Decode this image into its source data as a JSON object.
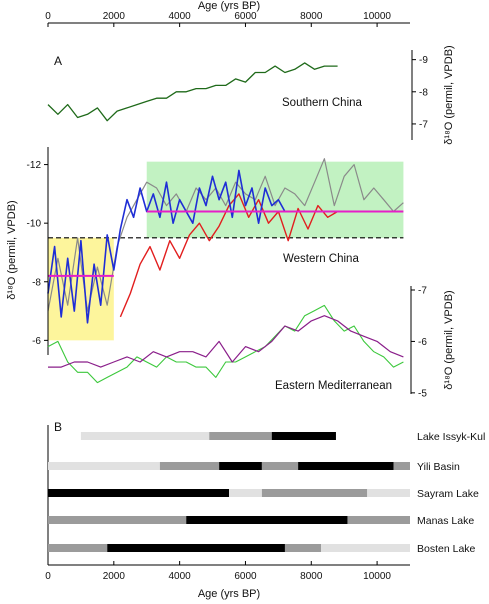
{
  "chart_data": [
    {
      "panel": "A",
      "type": "line",
      "x_axis": {
        "title": "Age (yrs BP)",
        "range": [
          0,
          11000
        ],
        "ticks": [
          0,
          2000,
          4000,
          6000,
          8000,
          10000
        ],
        "position": "top"
      },
      "charts": [
        {
          "label": "Southern China",
          "ylabel": "δ¹⁸O (permil, VPDB)",
          "y_axis": "right",
          "ylim": [
            -6.5,
            -9.3
          ],
          "y_ticks": [
            -7,
            -8,
            -9
          ],
          "series": [
            {
              "color": "#1f6a1a",
              "x": [
                0,
                300,
                600,
                900,
                1200,
                1500,
                1800,
                2100,
                2400,
                2700,
                3000,
                3300,
                3600,
                3900,
                4200,
                4500,
                4800,
                5100,
                5400,
                5700,
                6000,
                6300,
                6600,
                6900,
                7200,
                7500,
                7800,
                8100,
                8400,
                8800
              ],
              "values": [
                -7.6,
                -7.3,
                -7.6,
                -7.2,
                -7.3,
                -7.5,
                -7.1,
                -7.4,
                -7.5,
                -7.6,
                -7.7,
                -7.8,
                -7.8,
                -8.0,
                -8.0,
                -8.1,
                -8.1,
                -8.2,
                -8.2,
                -8.4,
                -8.3,
                -8.6,
                -8.6,
                -8.8,
                -8.6,
                -8.7,
                -8.9,
                -8.7,
                -8.8,
                -8.8
              ]
            }
          ]
        },
        {
          "label": "Western China",
          "ylabel": "δ¹⁸O (permil, VPDB)",
          "y_axis": "left",
          "ylim": [
            -5.5,
            -12.6
          ],
          "y_ticks": [
            -6,
            -8,
            -10,
            -12
          ],
          "grid": false,
          "highlights": [
            {
              "x": [
                0,
                2000
              ],
              "y": [
                -6,
                -9.5
              ],
              "color": "#fdf59c"
            },
            {
              "x": [
                3000,
                10800
              ],
              "y": [
                -9.5,
                -12.1
              ],
              "color": "#c2f2c2"
            }
          ],
          "dashed_line": {
            "x": [
              0,
              10800
            ],
            "y": -9.5,
            "color": "#000000"
          },
          "mean_lines": [
            {
              "x": [
                0,
                2000
              ],
              "y": -8.2,
              "color": "#e61ec8"
            },
            {
              "x": [
                3000,
                10800
              ],
              "y": -10.4,
              "color": "#e61ec8"
            }
          ],
          "series": [
            {
              "color": "#8a8a8a",
              "x": [
                0,
                300,
                600,
                900,
                1200,
                1500,
                1800,
                2100,
                2400,
                2700,
                3000,
                3300,
                3600,
                3900,
                4200,
                4500,
                4800,
                5100,
                5400,
                5700,
                6000,
                6300,
                6600,
                6900,
                7200,
                7500,
                7800,
                8100,
                8400,
                8700,
                9000,
                9300,
                9600,
                9900,
                10200,
                10500,
                10800
              ],
              "values": [
                -7.0,
                -8.8,
                -7.2,
                -9.5,
                -7.0,
                -8.5,
                -7.2,
                -9.2,
                -10.2,
                -10.8,
                -11.4,
                -11.2,
                -10.6,
                -11.0,
                -10.4,
                -11.2,
                -10.8,
                -11.2,
                -10.6,
                -11.4,
                -11.0,
                -10.8,
                -11.6,
                -10.6,
                -11.2,
                -11.0,
                -10.6,
                -11.4,
                -12.2,
                -10.6,
                -11.6,
                -12.0,
                -10.8,
                -11.2,
                -10.8,
                -10.4,
                -10.7
              ]
            },
            {
              "color": "#e21e1e",
              "x": [
                2200,
                2500,
                2800,
                3100,
                3400,
                3700,
                4000,
                4300,
                4600,
                4900,
                5200,
                5500,
                5800,
                6100,
                6400,
                6700,
                7000,
                7300,
                7600,
                7900,
                8200,
                8500,
                8800
              ],
              "values": [
                -6.8,
                -7.6,
                -8.6,
                -9.2,
                -8.4,
                -9.4,
                -8.8,
                -9.6,
                -10.0,
                -9.4,
                -9.9,
                -10.6,
                -11.0,
                -10.2,
                -10.8,
                -10.0,
                -10.4,
                -9.4,
                -10.5,
                -9.8,
                -10.6,
                -10.2,
                -10.4
              ]
            },
            {
              "color": "#1f2ed6",
              "x": [
                0,
                200,
                400,
                600,
                800,
                1000,
                1200,
                1400,
                1600,
                1800,
                2000,
                2200,
                2400,
                2600,
                2800,
                3000,
                3200,
                3400,
                3600,
                3800,
                4000,
                4200,
                4400,
                4600,
                4800,
                5000,
                5200,
                5400,
                5600,
                5800,
                6000,
                6200,
                6400,
                6600,
                6800,
                7000,
                7200
              ],
              "values": [
                -7.6,
                -9.2,
                -6.8,
                -8.8,
                -7.0,
                -9.4,
                -6.6,
                -8.6,
                -7.2,
                -9.6,
                -8.4,
                -9.8,
                -10.8,
                -10.2,
                -11.2,
                -10.4,
                -11.0,
                -10.2,
                -11.4,
                -10.0,
                -10.8,
                -10.4,
                -10.0,
                -11.2,
                -10.6,
                -11.6,
                -10.8,
                -11.4,
                -10.2,
                -11.8,
                -10.6,
                -11.2,
                -10.0,
                -11.2,
                -10.6,
                -10.8,
                -10.4
              ]
            }
          ]
        },
        {
          "label": "Eastern Mediterranean",
          "ylabel": "δ¹⁸O (permil, VPDB)",
          "y_axis": "right",
          "ylim": [
            -4.9,
            -7.0
          ],
          "y_ticks": [
            -5,
            -6,
            -7
          ],
          "series": [
            {
              "color": "#3cc83c",
              "x": [
                0,
                300,
                600,
                900,
                1200,
                1500,
                1800,
                2100,
                2400,
                2700,
                3000,
                3300,
                3600,
                3900,
                4200,
                4500,
                4800,
                5100,
                5400,
                5700,
                6000,
                6300,
                6600,
                6900,
                7200,
                7500,
                7800,
                8100,
                8400,
                8700,
                9000,
                9300,
                9600,
                9900,
                10200,
                10500,
                10800
              ],
              "values": [
                -5.9,
                -6.0,
                -5.6,
                -5.4,
                -5.4,
                -5.2,
                -5.3,
                -5.4,
                -5.5,
                -5.7,
                -5.6,
                -5.5,
                -5.7,
                -5.6,
                -5.6,
                -5.5,
                -5.5,
                -5.3,
                -5.6,
                -5.6,
                -5.7,
                -5.8,
                -5.9,
                -6.1,
                -6.3,
                -6.2,
                -6.5,
                -6.6,
                -6.7,
                -6.4,
                -6.2,
                -6.3,
                -6.0,
                -5.8,
                -5.7,
                -5.5,
                -5.6
              ]
            },
            {
              "color": "#8a1e8a",
              "x": [
                0,
                400,
                800,
                1200,
                1600,
                2000,
                2400,
                2800,
                3200,
                3600,
                4000,
                4400,
                4800,
                5200,
                5600,
                6000,
                6400,
                6800,
                7200,
                7600,
                8000,
                8400,
                8800,
                9200,
                9600,
                10000,
                10400,
                10800
              ],
              "values": [
                -5.5,
                -5.5,
                -5.6,
                -5.6,
                -5.5,
                -5.6,
                -5.7,
                -5.6,
                -5.8,
                -5.7,
                -5.8,
                -5.8,
                -5.7,
                -6.0,
                -5.6,
                -5.9,
                -5.8,
                -6.0,
                -6.3,
                -6.2,
                -6.4,
                -6.5,
                -6.4,
                -6.2,
                -6.1,
                -6.0,
                -5.8,
                -5.7
              ]
            }
          ]
        }
      ]
    },
    {
      "panel": "B",
      "type": "bar",
      "x_axis": {
        "title": "Age (yrs BP)",
        "range": [
          0,
          11000
        ],
        "ticks": [
          0,
          2000,
          4000,
          6000,
          8000,
          10000
        ],
        "position": "bottom"
      },
      "legend": "none",
      "categories": [
        "Lake Issyk-Kul",
        "Yili Basin",
        "Sayram Lake",
        "Manas Lake",
        "Bosten Lake"
      ],
      "intervals": [
        [
          {
            "start": 1000,
            "end": 4900,
            "shade": "light"
          },
          {
            "start": 4900,
            "end": 6800,
            "shade": "medium"
          },
          {
            "start": 6800,
            "end": 8750,
            "shade": "dark"
          }
        ],
        [
          {
            "start": 0,
            "end": 3400,
            "shade": "light"
          },
          {
            "start": 3400,
            "end": 5200,
            "shade": "medium"
          },
          {
            "start": 5200,
            "end": 6500,
            "shade": "dark"
          },
          {
            "start": 6500,
            "end": 7600,
            "shade": "medium"
          },
          {
            "start": 7600,
            "end": 10500,
            "shade": "dark"
          },
          {
            "start": 10500,
            "end": 11000,
            "shade": "medium"
          }
        ],
        [
          {
            "start": 0,
            "end": 5500,
            "shade": "dark"
          },
          {
            "start": 5500,
            "end": 6500,
            "shade": "light"
          },
          {
            "start": 6500,
            "end": 9700,
            "shade": "medium"
          },
          {
            "start": 9700,
            "end": 11000,
            "shade": "light"
          }
        ],
        [
          {
            "start": 0,
            "end": 4200,
            "shade": "medium"
          },
          {
            "start": 4200,
            "end": 9100,
            "shade": "dark"
          },
          {
            "start": 9100,
            "end": 11000,
            "shade": "medium"
          }
        ],
        [
          {
            "start": 0,
            "end": 1800,
            "shade": "medium"
          },
          {
            "start": 1800,
            "end": 7200,
            "shade": "dark"
          },
          {
            "start": 7200,
            "end": 8300,
            "shade": "medium"
          },
          {
            "start": 8300,
            "end": 11000,
            "shade": "light"
          }
        ]
      ],
      "shade_colors": {
        "light": "#e1e1e1",
        "medium": "#9b9b9b",
        "dark": "#000000"
      }
    }
  ]
}
